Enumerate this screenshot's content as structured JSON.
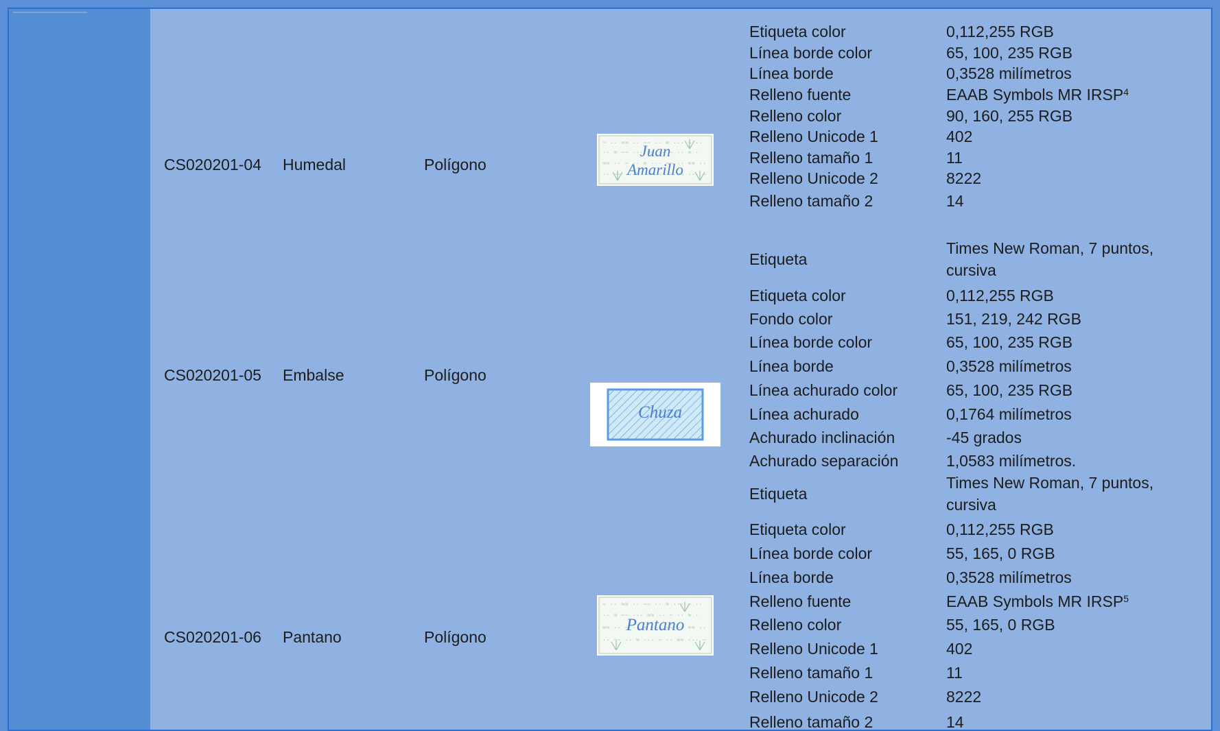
{
  "rows": [
    {
      "code": "CS020201-04",
      "name": "Humedal",
      "geometry": "Polígono",
      "symbol_label_1": "Juan",
      "symbol_label_2": "Amarillo",
      "props": [
        {
          "k": "Etiqueta color",
          "v": "0,112,255 RGB"
        },
        {
          "k": "Línea borde color",
          "v": "65, 100, 235 RGB"
        },
        {
          "k": "Línea borde",
          "v": "0,3528 milímetros"
        },
        {
          "k": "Relleno fuente",
          "v": "EAAB Symbols MR IRSP",
          "sup": "4"
        },
        {
          "k": "Relleno color",
          "v": "90, 160, 255 RGB"
        },
        {
          "k": "Relleno Unicode 1",
          "v": "402"
        },
        {
          "k": "Relleno tamaño 1",
          "v": "11"
        },
        {
          "k": "Relleno Unicode 2",
          "v": "8222"
        },
        {
          "k": "Relleno tamaño 2",
          "v": "14"
        }
      ]
    },
    {
      "code": "CS020201-05",
      "name": "Embalse",
      "geometry": "Polígono",
      "symbol_label_1": "Chuza",
      "props": [
        {
          "k": "Etiqueta",
          "v": "Times New Roman, 7 puntos, cursiva"
        },
        {
          "k": "Etiqueta color",
          "v": "0,112,255 RGB"
        },
        {
          "k": "Fondo color",
          "v": "151, 219, 242 RGB"
        },
        {
          "k": "Línea borde color",
          "v": "65, 100, 235 RGB"
        },
        {
          "k": "Línea borde",
          "v": "0,3528 milímetros"
        },
        {
          "k": "Línea achurado color",
          "v": "65, 100, 235 RGB"
        },
        {
          "k": "Línea achurado",
          "v": "0,1764 milímetros"
        },
        {
          "k": "Achurado inclinación",
          "v": "-45 grados"
        },
        {
          "k": "Achurado separación",
          "v": "1,0583 milímetros."
        }
      ]
    },
    {
      "code": "CS020201-06",
      "name": "Pantano",
      "geometry": "Polígono",
      "symbol_label_1": "Pantano",
      "props": [
        {
          "k": "Etiqueta",
          "v": "Times New Roman, 7 puntos, cursiva"
        },
        {
          "k": "Etiqueta color",
          "v": "0,112,255 RGB"
        },
        {
          "k": "Línea borde color",
          "v": "55, 165, 0 RGB"
        },
        {
          "k": "Línea borde",
          "v": "0,3528 milímetros"
        },
        {
          "k": "Relleno fuente",
          "v": "EAAB Symbols MR IRSP",
          "sup": "5"
        },
        {
          "k": "Relleno color",
          "v": "55, 165, 0 RGB"
        },
        {
          "k": "Relleno Unicode 1",
          "v": "402"
        },
        {
          "k": "Relleno tamaño 1",
          "v": "11"
        },
        {
          "k": "Relleno Unicode 2",
          "v": "8222"
        },
        {
          "k": "Relleno tamaño 2",
          "v": "14"
        }
      ]
    }
  ],
  "colors": {
    "table_bg": "#8fb2e3",
    "left_bar": "#558ed5",
    "border": "#2d6fd0",
    "symbol_label": "#4a7fd0"
  }
}
